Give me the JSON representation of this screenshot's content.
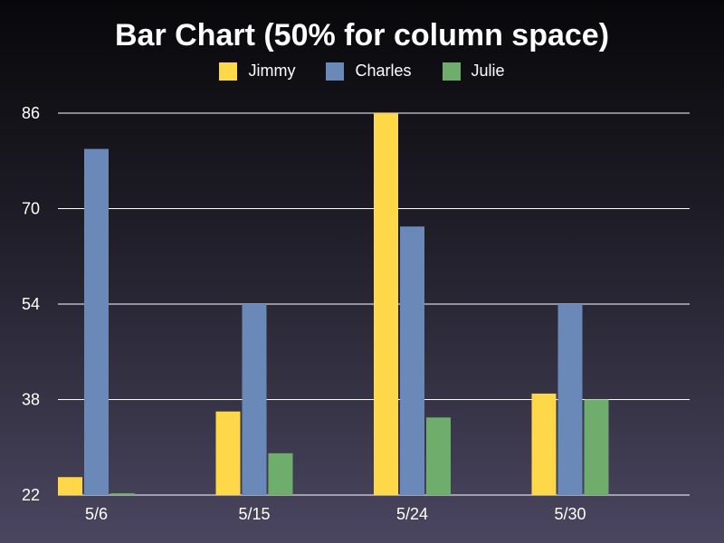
{
  "chart_data": {
    "type": "bar",
    "title": "Bar Chart (50% for column space)",
    "categories": [
      "5/6",
      "5/15",
      "5/24",
      "5/30"
    ],
    "series": [
      {
        "name": "Jimmy",
        "color": "#ffd84a",
        "values": [
          25,
          36,
          86,
          39
        ]
      },
      {
        "name": "Charles",
        "color": "#6a89b9",
        "values": [
          80,
          54,
          67,
          54
        ]
      },
      {
        "name": "Julie",
        "color": "#6fad6c",
        "values": [
          22.3,
          29,
          35,
          38
        ]
      }
    ],
    "yticks": [
      22,
      38,
      54,
      70,
      86
    ],
    "ylim": [
      22,
      86
    ],
    "grid": true,
    "legend_position": "top"
  }
}
